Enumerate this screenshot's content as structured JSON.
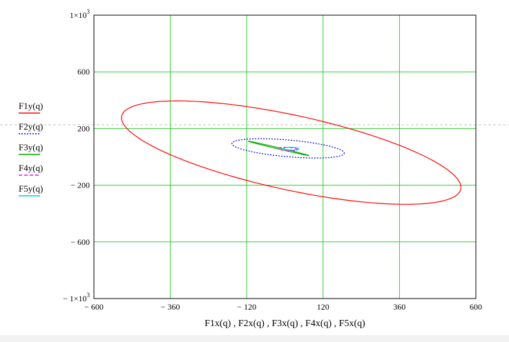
{
  "colors": {
    "grid": "#33cc33",
    "axis": "#000000",
    "background": "#ffffff",
    "dashed_line": "#c0c0c0"
  },
  "chart_data": {
    "type": "line",
    "xlabel": "F1x(q) , F2x(q) , F3x(q) , F4x(q) , F5x(q)",
    "ylabel": "",
    "xlim": [
      -600,
      600
    ],
    "ylim": [
      -1000,
      1000
    ],
    "grid": true,
    "legend_position": "left",
    "x_ticks": [
      {
        "value": -600,
        "label": "− 600"
      },
      {
        "value": -360,
        "label": "− 360"
      },
      {
        "value": -120,
        "label": "− 120"
      },
      {
        "value": 120,
        "label": "120"
      },
      {
        "value": 360,
        "label": "360"
      },
      {
        "value": 600,
        "label": "600"
      }
    ],
    "y_ticks": [
      {
        "value": 1000,
        "label": "1×10",
        "exp": "3"
      },
      {
        "value": 600,
        "label": "600"
      },
      {
        "value": 200,
        "label": "200"
      },
      {
        "value": -200,
        "label": "− 200"
      },
      {
        "value": -600,
        "label": "− 600"
      },
      {
        "value": -1000,
        "label": "− 1×10",
        "exp": "3"
      }
    ],
    "series": [
      {
        "name": "F1y(q)",
        "color": "#ff0000",
        "dash": "solid",
        "center": [
          20,
          30
        ],
        "semi_major": 600,
        "semi_minor": 240,
        "angle_deg": -30
      },
      {
        "name": "F2y(q)",
        "color": "#0000ff",
        "dash": "dotted",
        "center": [
          10,
          60
        ],
        "semi_major": 180,
        "semi_minor": 58,
        "angle_deg": -12
      },
      {
        "name": "F3y(q)",
        "color": "#00aa00",
        "dash": "solid",
        "center": [
          -20,
          60
        ],
        "semi_major": 108,
        "semi_minor": 4,
        "angle_deg": -28
      },
      {
        "name": "F4y(q)",
        "color": "#ff00ff",
        "dash": "dashed",
        "center": [
          10,
          55
        ],
        "semi_major": 30,
        "semi_minor": 12,
        "angle_deg": -10
      },
      {
        "name": "F5y(q)",
        "color": "#00cccc",
        "dash": "solid",
        "center": [
          20,
          58
        ],
        "semi_major": 24,
        "semi_minor": 10,
        "angle_deg": -5
      }
    ]
  }
}
